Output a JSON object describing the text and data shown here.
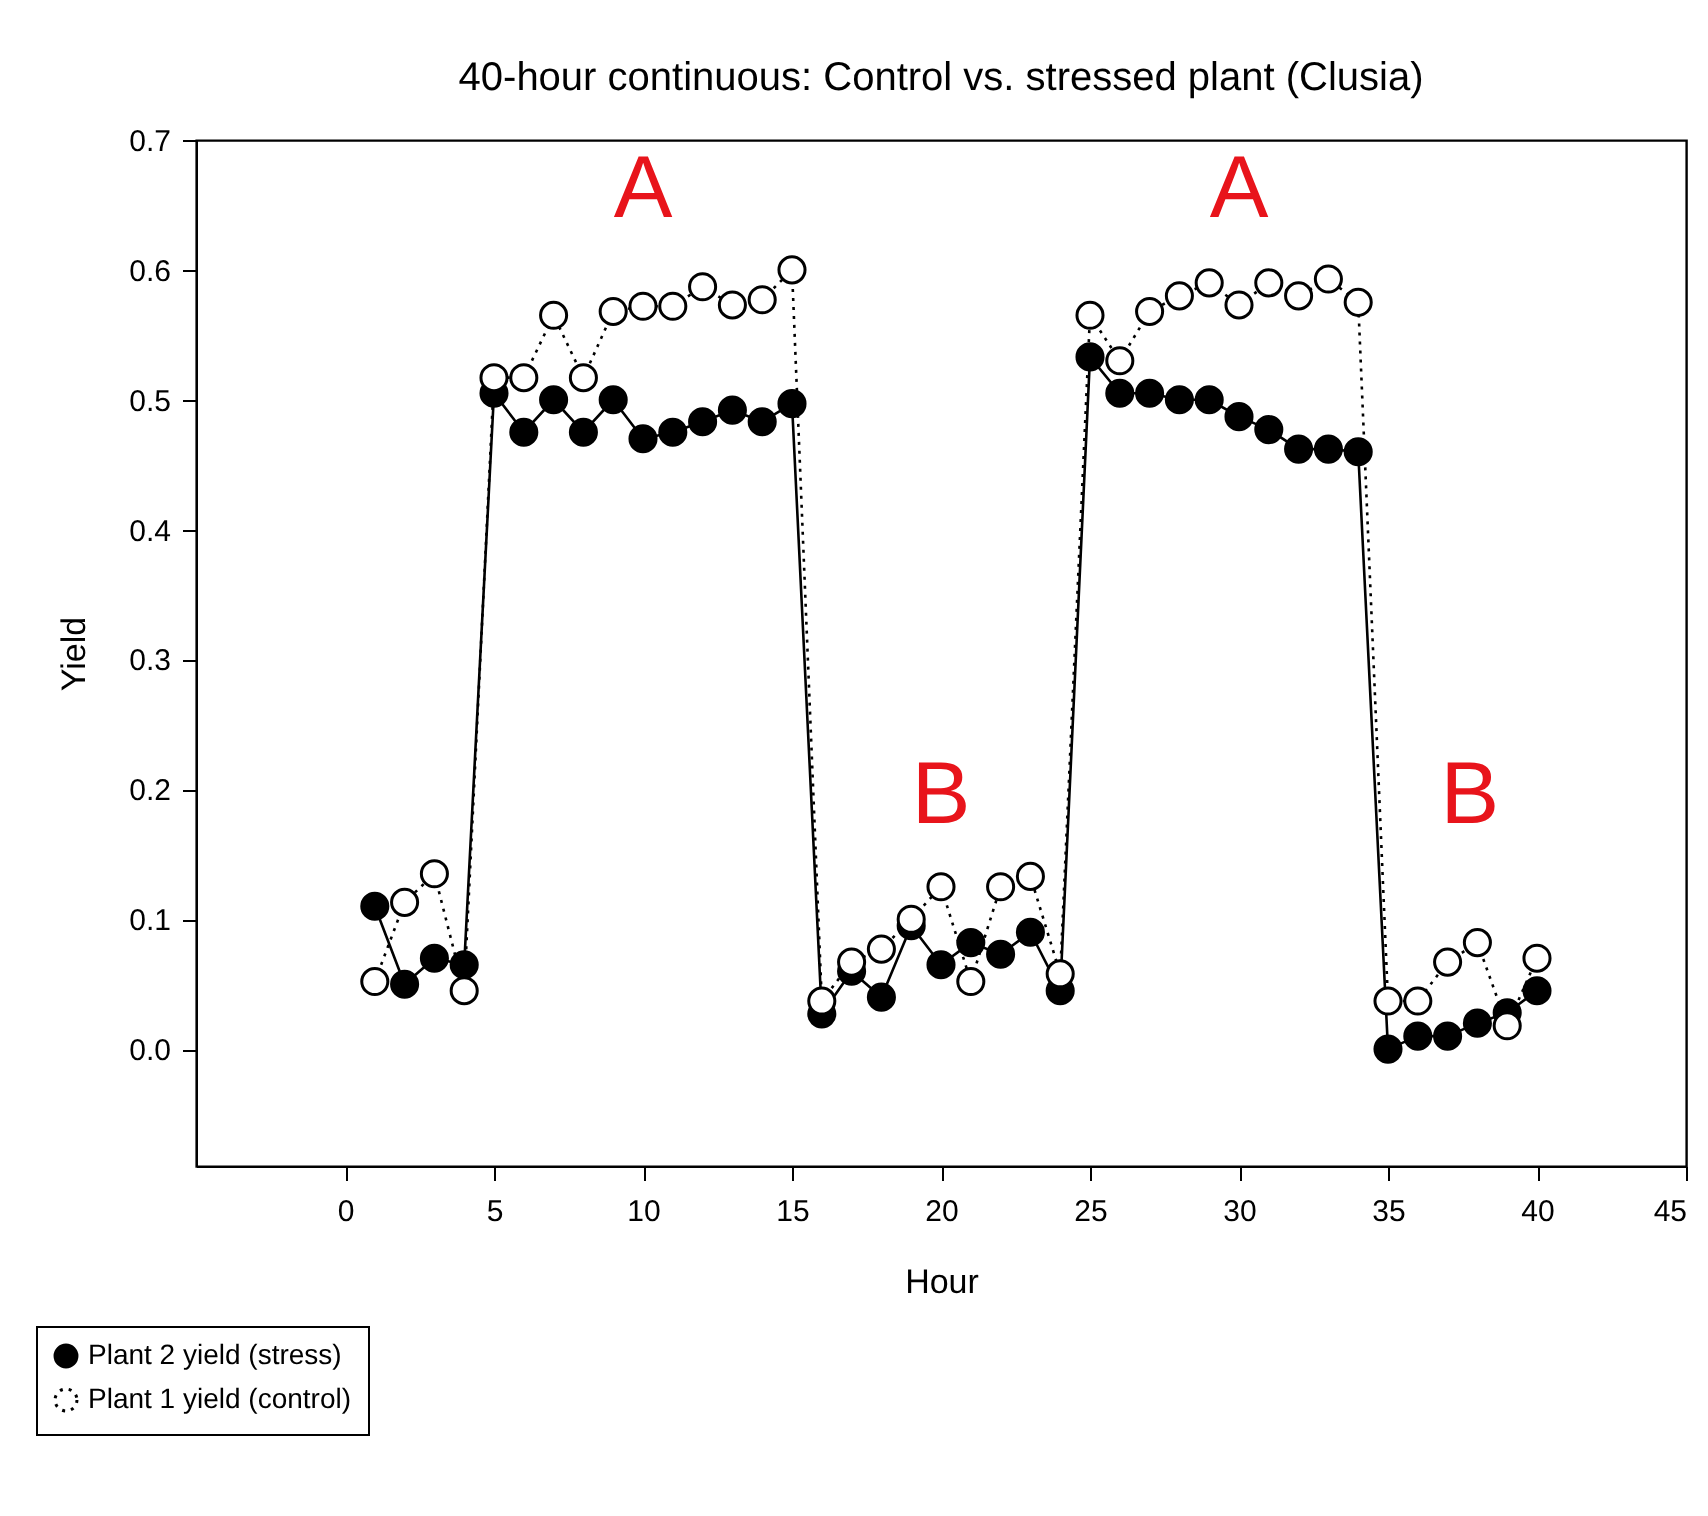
{
  "chart_data": {
    "type": "line",
    "title": "40-hour continuous: Control vs. stressed plant (Clusia)",
    "xlabel": "Hour",
    "ylabel": "Yield",
    "x": [
      1,
      2,
      3,
      4,
      5,
      6,
      7,
      8,
      9,
      10,
      11,
      12,
      13,
      14,
      15,
      16,
      17,
      18,
      19,
      20,
      21,
      22,
      23,
      24,
      25,
      26,
      27,
      28,
      29,
      30,
      31,
      32,
      33,
      34,
      35,
      36,
      37,
      38,
      39,
      40
    ],
    "series": [
      {
        "name": "Plant 2 yield (stress)",
        "color": "#000000",
        "line_style": "solid",
        "values": [
          0.11,
          0.05,
          0.07,
          0.065,
          0.505,
          0.475,
          0.5,
          0.475,
          0.5,
          0.47,
          0.475,
          0.483,
          0.492,
          0.483,
          0.497,
          0.027,
          0.06,
          0.04,
          0.095,
          0.065,
          0.082,
          0.073,
          0.09,
          0.045,
          0.533,
          0.505,
          0.505,
          0.5,
          0.5,
          0.487,
          0.477,
          0.462,
          0.462,
          0.46,
          0.0,
          0.01,
          0.01,
          0.02,
          0.028,
          0.045
        ]
      },
      {
        "name": "Plant 1 yield (control)",
        "color": "#000000",
        "line_style": "dotted",
        "values": [
          0.052,
          0.113,
          0.135,
          0.045,
          0.517,
          0.517,
          0.565,
          0.517,
          0.568,
          0.572,
          0.572,
          0.587,
          0.573,
          0.577,
          0.6,
          0.037,
          0.067,
          0.077,
          0.1,
          0.125,
          0.052,
          0.125,
          0.133,
          0.058,
          0.565,
          0.53,
          0.568,
          0.58,
          0.59,
          0.573,
          0.59,
          0.58,
          0.593,
          0.575,
          0.037,
          0.037,
          0.067,
          0.082,
          0.018,
          0.07
        ]
      }
    ],
    "annotations": [
      "A",
      "A",
      "B",
      "B"
    ],
    "xlim": [
      -5,
      45
    ],
    "xticks": [
      0,
      5,
      10,
      15,
      20,
      25,
      30,
      35,
      40,
      45
    ],
    "ylim": [
      -0.09,
      0.7
    ],
    "yticks": [
      {
        "value": 0,
        "label": "0.0"
      },
      {
        "value": 0.1,
        "label": "0.1"
      },
      {
        "value": 0.2,
        "label": "0.2"
      },
      {
        "value": 0.3,
        "label": "0.3"
      },
      {
        "value": 0.4,
        "label": "0.4"
      },
      {
        "value": 0.5,
        "label": "0.5"
      },
      {
        "value": 0.6,
        "label": "0.6"
      },
      {
        "value": 0.7,
        "label": "0.7"
      }
    ],
    "grid": false,
    "legend": "bottom left",
    "marker": "circle"
  }
}
